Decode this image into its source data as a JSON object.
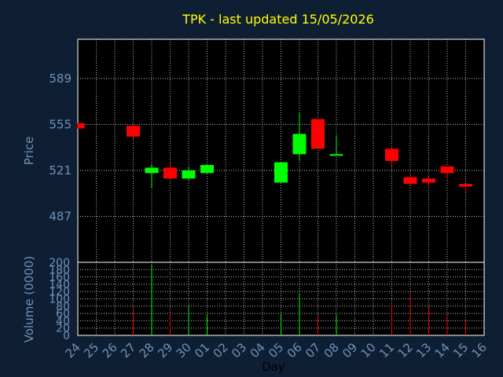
{
  "chart_data": {
    "type": "candlestick",
    "title": "TPK - last updated 15/05/2026",
    "ylabel": "Price",
    "ylabel_volume": "Volume (0000)",
    "xlabel": "Day",
    "categories": [
      "24",
      "25",
      "26",
      "27",
      "28",
      "29",
      "30",
      "01",
      "02",
      "03",
      "04",
      "05",
      "06",
      "07",
      "08",
      "09",
      "10",
      "11",
      "12",
      "13",
      "14",
      "15",
      "16"
    ],
    "price_ticks": [
      589,
      555,
      521,
      487
    ],
    "price_range": [
      453,
      618
    ],
    "volume_ticks": [
      0,
      20,
      40,
      60,
      80,
      100,
      120,
      140,
      160,
      180,
      200
    ],
    "volume_range": [
      0,
      200
    ],
    "grid": true,
    "colors": {
      "up": "#00ff00",
      "down": "#ff0000",
      "background": "#0f1f33",
      "plot": "#000000",
      "grid": "#bbbbbb",
      "text": "#6f91b9",
      "title": "#ffff00"
    },
    "series": [
      {
        "date": "24",
        "open": 556,
        "high": 556,
        "low": 552,
        "close": 552,
        "volume": 0
      },
      {
        "date": "27",
        "open": 554,
        "high": 554,
        "low": 545,
        "close": 546,
        "volume": 70
      },
      {
        "date": "28",
        "open": 519,
        "high": 526,
        "low": 508,
        "close": 523,
        "volume": 195
      },
      {
        "date": "29",
        "open": 523,
        "high": 527,
        "low": 515,
        "close": 515,
        "volume": 60
      },
      {
        "date": "30",
        "open": 515,
        "high": 524,
        "low": 513,
        "close": 521,
        "volume": 80
      },
      {
        "date": "01",
        "open": 519,
        "high": 525,
        "low": 519,
        "close": 525,
        "volume": 55
      },
      {
        "date": "05",
        "open": 512,
        "high": 527,
        "low": 512,
        "close": 527,
        "volume": 60
      },
      {
        "date": "06",
        "open": 533,
        "high": 564,
        "low": 528,
        "close": 548,
        "volume": 115
      },
      {
        "date": "07",
        "open": 559,
        "high": 559,
        "low": 537,
        "close": 537,
        "volume": 55
      },
      {
        "date": "08",
        "open": 533,
        "high": 547,
        "low": 532,
        "close": 533,
        "volume": 55
      },
      {
        "date": "11",
        "open": 537,
        "high": 537,
        "low": 524,
        "close": 528,
        "volume": 85
      },
      {
        "date": "12",
        "open": 516,
        "high": 519,
        "low": 510,
        "close": 511,
        "volume": 115
      },
      {
        "date": "13",
        "open": 515,
        "high": 516,
        "low": 509,
        "close": 512,
        "volume": 75
      },
      {
        "date": "14",
        "open": 524,
        "high": 524,
        "low": 514,
        "close": 519,
        "volume": 55
      },
      {
        "date": "15",
        "open": 511,
        "high": 511,
        "low": 505,
        "close": 509,
        "volume": 45
      }
    ]
  }
}
